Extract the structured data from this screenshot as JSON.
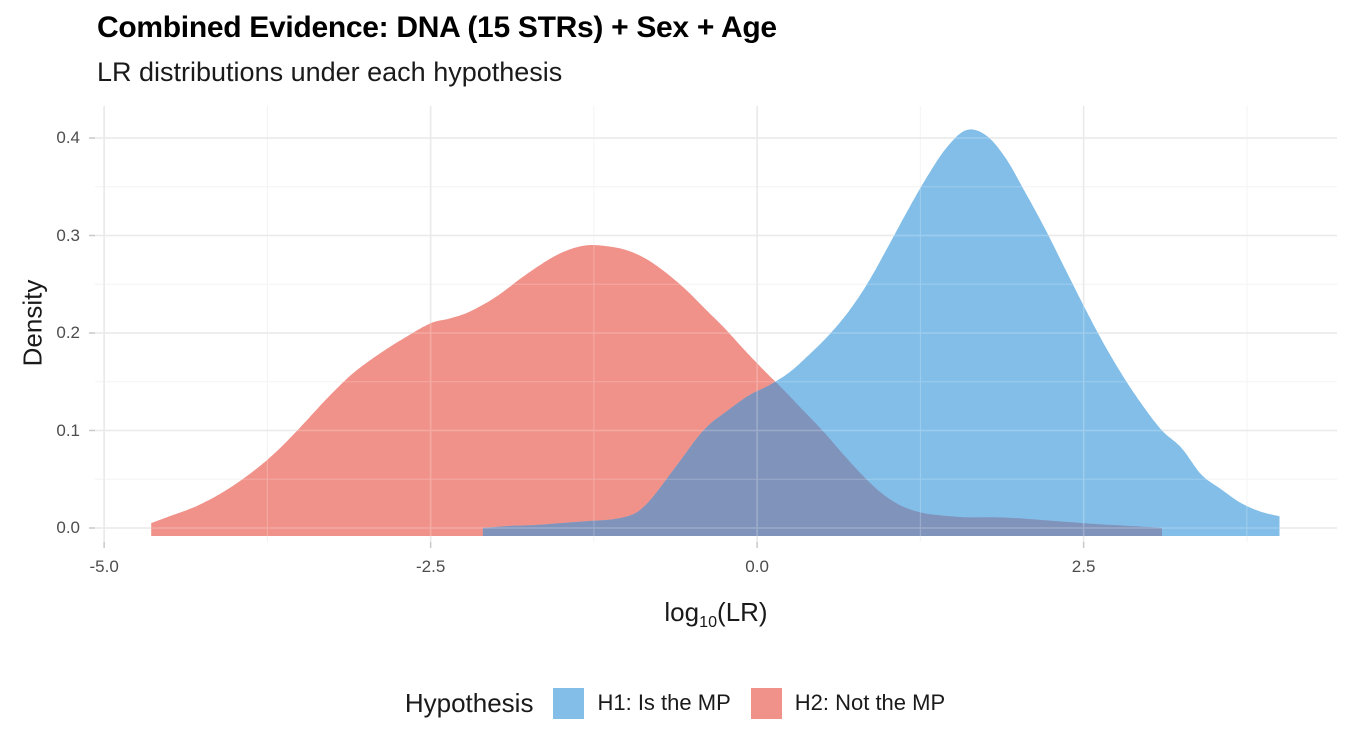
{
  "title": "Combined Evidence: DNA (15 STRs) + Sex + Age",
  "subtitle": "LR distributions under each hypothesis",
  "axes": {
    "x": {
      "label_prefix": "log",
      "label_sub": "10",
      "label_suffix": "(LR)",
      "ticks": [
        {
          "v": -5.0,
          "label": "-5.0"
        },
        {
          "v": -2.5,
          "label": "-2.5"
        },
        {
          "v": 0.0,
          "label": "0.0"
        },
        {
          "v": 2.5,
          "label": "2.5"
        }
      ],
      "minor": [
        -3.75,
        -1.25,
        1.25,
        3.75
      ]
    },
    "y": {
      "label": "Density",
      "ticks": [
        {
          "v": 0.0,
          "label": "0.0"
        },
        {
          "v": 0.1,
          "label": "0.1"
        },
        {
          "v": 0.2,
          "label": "0.2"
        },
        {
          "v": 0.3,
          "label": "0.3"
        },
        {
          "v": 0.4,
          "label": "0.4"
        }
      ],
      "minor": [
        0.05,
        0.15,
        0.25,
        0.35
      ]
    }
  },
  "legend": {
    "title": "Hypothesis",
    "items": [
      {
        "label": "H1: Is the MP",
        "color": "#82BEE8"
      },
      {
        "label": "H2: Not the MP",
        "color": "#F09289"
      }
    ]
  },
  "colors": {
    "h1_fill": "#82BEE8",
    "h2_fill": "#F09289",
    "overlap": "#8093BB",
    "grid_major": "#E4E4E4",
    "grid_minor": "#F2F2F2",
    "tick": "#C9C9C9",
    "tick_text": "#4D4D4D",
    "text": "#1A1A1A"
  },
  "chart_data": {
    "type": "area",
    "title": "Combined Evidence: DNA (15 STRs) + Sex + Age",
    "subtitle": "LR distributions under each hypothesis",
    "xlabel": "log10(LR)",
    "ylabel": "Density",
    "xlim": [
      -5.07,
      4.44
    ],
    "ylim": [
      0,
      0.433
    ],
    "grid": true,
    "legend_position": "bottom",
    "overlap_color": "#8093BB",
    "series": [
      {
        "name": "H1: Is the MP",
        "color": "#82BEE8",
        "points": [
          [
            -2.1,
            0.0
          ],
          [
            -1.9,
            0.002
          ],
          [
            -1.7,
            0.003
          ],
          [
            -1.5,
            0.005
          ],
          [
            -1.3,
            0.007
          ],
          [
            -1.1,
            0.009
          ],
          [
            -0.95,
            0.014
          ],
          [
            -0.85,
            0.024
          ],
          [
            -0.75,
            0.04
          ],
          [
            -0.65,
            0.058
          ],
          [
            -0.55,
            0.076
          ],
          [
            -0.45,
            0.094
          ],
          [
            -0.35,
            0.108
          ],
          [
            -0.25,
            0.118
          ],
          [
            -0.15,
            0.128
          ],
          [
            -0.05,
            0.137
          ],
          [
            0.1,
            0.147
          ],
          [
            0.25,
            0.16
          ],
          [
            0.4,
            0.178
          ],
          [
            0.55,
            0.198
          ],
          [
            0.7,
            0.222
          ],
          [
            0.85,
            0.252
          ],
          [
            1.0,
            0.288
          ],
          [
            1.15,
            0.325
          ],
          [
            1.3,
            0.36
          ],
          [
            1.45,
            0.39
          ],
          [
            1.6,
            0.408
          ],
          [
            1.75,
            0.403
          ],
          [
            1.9,
            0.38
          ],
          [
            2.05,
            0.345
          ],
          [
            2.2,
            0.308
          ],
          [
            2.35,
            0.268
          ],
          [
            2.5,
            0.228
          ],
          [
            2.65,
            0.19
          ],
          [
            2.8,
            0.156
          ],
          [
            2.95,
            0.126
          ],
          [
            3.1,
            0.1
          ],
          [
            3.25,
            0.082
          ],
          [
            3.4,
            0.055
          ],
          [
            3.55,
            0.04
          ],
          [
            3.7,
            0.026
          ],
          [
            3.85,
            0.017
          ],
          [
            4.0,
            0.012
          ]
        ]
      },
      {
        "name": "H2: Not the MP",
        "color": "#F09289",
        "points": [
          [
            -4.64,
            0.005
          ],
          [
            -4.5,
            0.012
          ],
          [
            -4.3,
            0.022
          ],
          [
            -4.1,
            0.036
          ],
          [
            -3.9,
            0.054
          ],
          [
            -3.7,
            0.076
          ],
          [
            -3.5,
            0.103
          ],
          [
            -3.3,
            0.132
          ],
          [
            -3.1,
            0.158
          ],
          [
            -2.9,
            0.178
          ],
          [
            -2.7,
            0.195
          ],
          [
            -2.5,
            0.21
          ],
          [
            -2.35,
            0.215
          ],
          [
            -2.2,
            0.222
          ],
          [
            -2.0,
            0.237
          ],
          [
            -1.8,
            0.257
          ],
          [
            -1.6,
            0.275
          ],
          [
            -1.45,
            0.285
          ],
          [
            -1.3,
            0.29
          ],
          [
            -1.15,
            0.289
          ],
          [
            -1.0,
            0.285
          ],
          [
            -0.85,
            0.276
          ],
          [
            -0.7,
            0.262
          ],
          [
            -0.55,
            0.245
          ],
          [
            -0.4,
            0.225
          ],
          [
            -0.25,
            0.205
          ],
          [
            -0.1,
            0.183
          ],
          [
            0.05,
            0.162
          ],
          [
            0.2,
            0.142
          ],
          [
            0.35,
            0.121
          ],
          [
            0.5,
            0.1
          ],
          [
            0.65,
            0.077
          ],
          [
            0.8,
            0.055
          ],
          [
            0.95,
            0.036
          ],
          [
            1.1,
            0.023
          ],
          [
            1.25,
            0.016
          ],
          [
            1.4,
            0.013
          ],
          [
            1.6,
            0.011
          ],
          [
            1.8,
            0.011
          ],
          [
            2.0,
            0.01
          ],
          [
            2.2,
            0.008
          ],
          [
            2.4,
            0.006
          ],
          [
            2.6,
            0.004
          ],
          [
            2.8,
            0.0025
          ],
          [
            3.0,
            0.001
          ],
          [
            3.1,
            0.0
          ]
        ]
      }
    ]
  }
}
